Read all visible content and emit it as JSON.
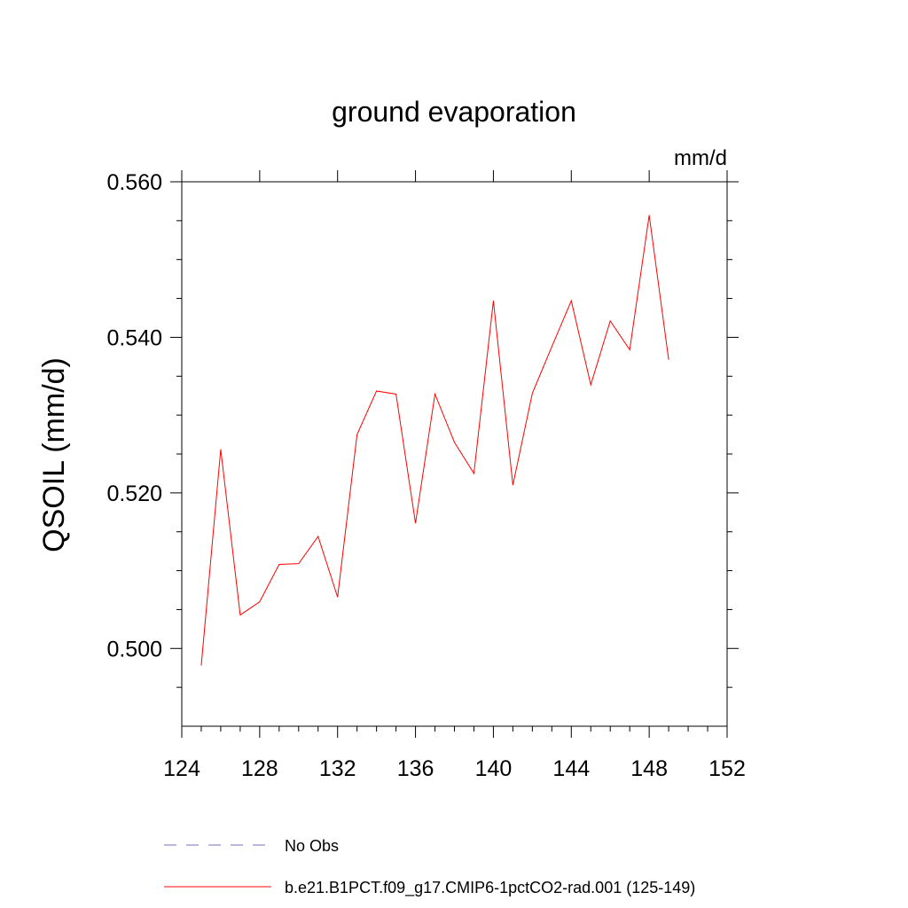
{
  "chart_data": {
    "type": "line",
    "title": "ground evaporation",
    "units": "mm/d",
    "ylabel": "QSOIL  (mm/d)",
    "xlabel": "",
    "xlim": [
      124,
      152
    ],
    "ylim": [
      0.49,
      0.56
    ],
    "x_ticks": [
      124,
      128,
      132,
      136,
      140,
      144,
      148,
      152
    ],
    "x_tick_labels": [
      "124",
      "128",
      "132",
      "136",
      "140",
      "144",
      "148",
      "152"
    ],
    "y_ticks": [
      0.5,
      0.52,
      0.54,
      0.56
    ],
    "y_tick_labels": [
      "0.500",
      "0.520",
      "0.540",
      "0.560"
    ],
    "grid": false,
    "legend_position": "bottom",
    "series": [
      {
        "name": "No Obs",
        "color": "#7b6fbf",
        "dash": true,
        "x": [],
        "y": []
      },
      {
        "name": "b.e21.B1PCT.f09_g17.CMIP6-1pctCO2-rad.001 (125-149)",
        "color": "#ff0000",
        "dash": false,
        "x": [
          125,
          126,
          127,
          128,
          129,
          130,
          131,
          132,
          133,
          134,
          135,
          136,
          137,
          138,
          139,
          140,
          141,
          142,
          143,
          144,
          145,
          146,
          147,
          148,
          149
        ],
        "y": [
          0.4978,
          0.5256,
          0.5043,
          0.506,
          0.5108,
          0.5109,
          0.5144,
          0.5066,
          0.5275,
          0.5331,
          0.5327,
          0.5161,
          0.5327,
          0.5265,
          0.5225,
          0.5447,
          0.521,
          0.5328,
          0.5388,
          0.5447,
          0.5339,
          0.5421,
          0.5384,
          0.5557,
          0.5371
        ]
      }
    ]
  }
}
